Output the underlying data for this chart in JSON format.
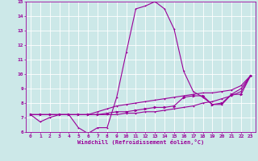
{
  "xlabel": "Windchill (Refroidissement éolien,°C)",
  "background_color": "#cce8e8",
  "grid_color": "#ffffff",
  "line_color": "#990099",
  "xlim": [
    -0.5,
    23.5
  ],
  "ylim": [
    6,
    15
  ],
  "xticks": [
    0,
    1,
    2,
    3,
    4,
    5,
    6,
    7,
    8,
    9,
    10,
    11,
    12,
    13,
    14,
    15,
    16,
    17,
    18,
    19,
    20,
    21,
    22,
    23
  ],
  "yticks": [
    6,
    7,
    8,
    9,
    10,
    11,
    12,
    13,
    14,
    15
  ],
  "curve1_x": [
    0,
    1,
    2,
    3,
    4,
    5,
    6,
    7,
    8,
    9,
    10,
    11,
    12,
    13,
    14,
    15,
    16,
    17,
    18,
    19,
    20,
    21,
    22,
    23
  ],
  "curve1_y": [
    7.2,
    6.7,
    7.0,
    7.2,
    7.2,
    6.3,
    5.9,
    6.3,
    6.3,
    8.4,
    11.5,
    14.5,
    14.7,
    15.0,
    14.5,
    13.1,
    10.2,
    8.8,
    8.4,
    7.9,
    7.9,
    8.6,
    9.0,
    9.9
  ],
  "curve2_x": [
    0,
    1,
    2,
    3,
    4,
    5,
    6,
    7,
    8,
    9,
    10,
    11,
    12,
    13,
    14,
    15,
    16,
    17,
    18,
    19,
    20,
    21,
    22,
    23
  ],
  "curve2_y": [
    7.2,
    7.2,
    7.2,
    7.2,
    7.2,
    7.2,
    7.2,
    7.4,
    7.6,
    7.8,
    7.9,
    8.0,
    8.1,
    8.2,
    8.3,
    8.4,
    8.5,
    8.6,
    8.7,
    8.7,
    8.8,
    8.9,
    9.2,
    9.9
  ],
  "curve3_x": [
    0,
    1,
    2,
    3,
    4,
    5,
    6,
    7,
    8,
    9,
    10,
    11,
    12,
    13,
    14,
    15,
    16,
    17,
    18,
    19,
    20,
    21,
    22,
    23
  ],
  "curve3_y": [
    7.2,
    7.2,
    7.2,
    7.2,
    7.2,
    7.2,
    7.2,
    7.2,
    7.3,
    7.4,
    7.4,
    7.5,
    7.6,
    7.7,
    7.7,
    7.8,
    8.4,
    8.5,
    8.5,
    7.9,
    8.0,
    8.6,
    8.6,
    9.9
  ],
  "curve4_x": [
    0,
    1,
    2,
    3,
    4,
    5,
    6,
    7,
    8,
    9,
    10,
    11,
    12,
    13,
    14,
    15,
    16,
    17,
    18,
    19,
    20,
    21,
    22,
    23
  ],
  "curve4_y": [
    7.2,
    7.2,
    7.2,
    7.2,
    7.2,
    7.2,
    7.2,
    7.2,
    7.2,
    7.2,
    7.3,
    7.3,
    7.4,
    7.4,
    7.5,
    7.6,
    7.7,
    7.8,
    8.0,
    8.1,
    8.3,
    8.5,
    8.8,
    9.9
  ],
  "tick_fontsize": 4.5,
  "xlabel_fontsize": 5.0,
  "marker_size": 2.0,
  "line_width": 0.8
}
